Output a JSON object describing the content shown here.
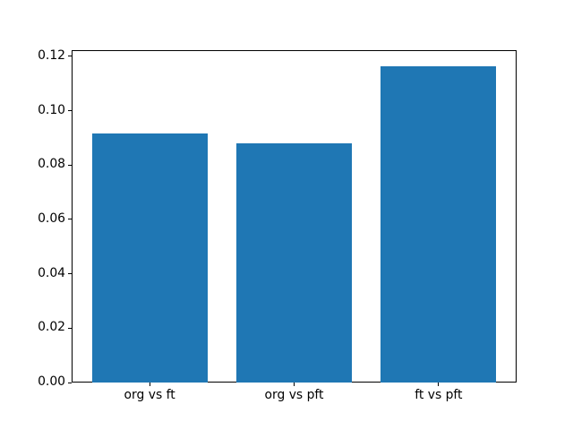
{
  "chart_data": {
    "type": "bar",
    "categories": [
      "org vs ft",
      "org vs pft",
      "ft vs pft"
    ],
    "values": [
      0.0917,
      0.0881,
      0.1164
    ],
    "title": "",
    "xlabel": "",
    "ylabel": "",
    "ylim": [
      0,
      0.1223
    ],
    "ytick_values": [
      0,
      0.02,
      0.04,
      0.06,
      0.08,
      0.1,
      0.12
    ],
    "ytick_labels": [
      "0.00",
      "0.02",
      "0.04",
      "0.06",
      "0.08",
      "0.10",
      "0.12"
    ],
    "grid": false,
    "legend": false,
    "bar_color": "#1f77b4",
    "axis_color": "#000000",
    "text_color": "#000000",
    "background_color": "#ffffff"
  }
}
